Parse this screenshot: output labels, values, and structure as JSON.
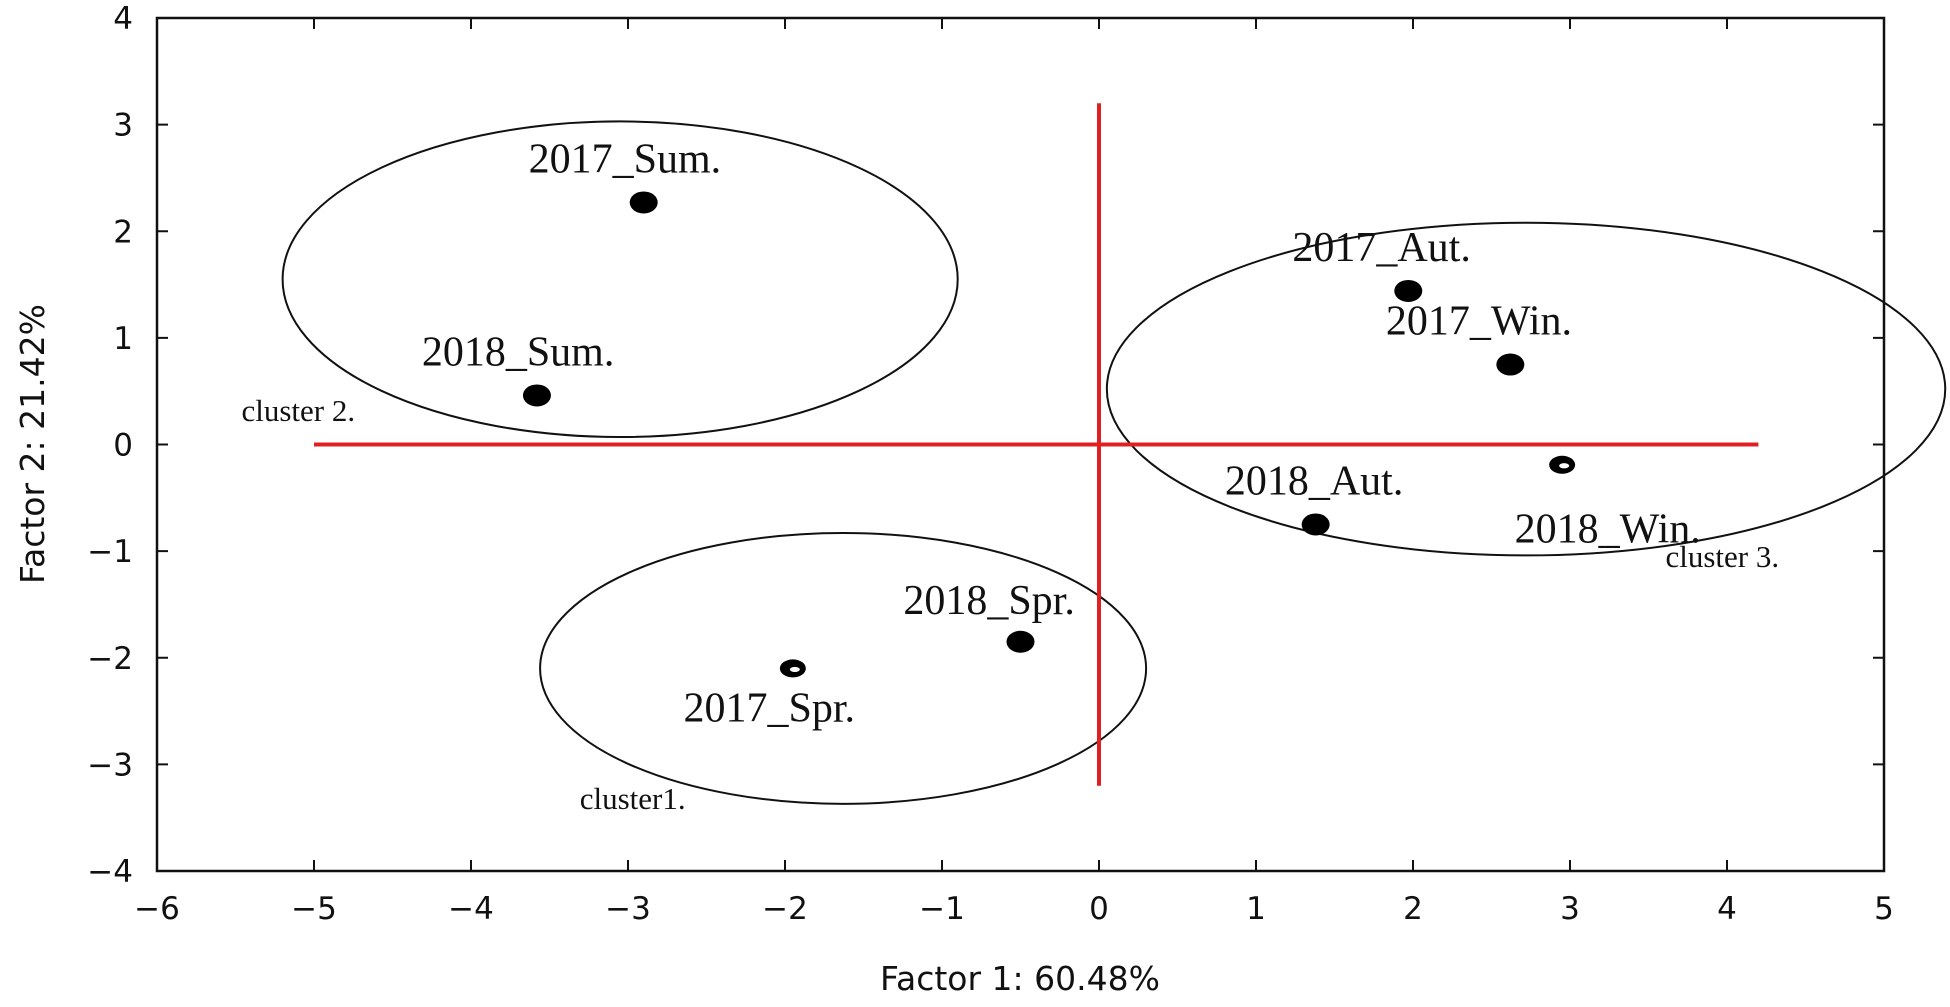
{
  "chart_data": {
    "type": "scatter",
    "xlabel": "Factor 1: 60.48%",
    "ylabel": "Factor 2: 21.42%",
    "xlim": [
      -6,
      5
    ],
    "ylim": [
      -4,
      4
    ],
    "x_ticks": [
      -6,
      -5,
      -4,
      -3,
      -2,
      -1,
      0,
      1,
      2,
      3,
      4,
      5
    ],
    "y_ticks": [
      -4,
      -3,
      -2,
      -1,
      0,
      1,
      2,
      3,
      4
    ],
    "grid": false,
    "points": [
      {
        "label": "2017_Sum.",
        "x": -2.9,
        "y": 2.27,
        "marker": "filled"
      },
      {
        "label": "2018_Sum.",
        "x": -3.58,
        "y": 0.46,
        "marker": "filled"
      },
      {
        "label": "2017_Aut.",
        "x": 1.97,
        "y": 1.44,
        "marker": "filled"
      },
      {
        "label": "2017_Win.",
        "x": 2.62,
        "y": 0.75,
        "marker": "filled"
      },
      {
        "label": "2018_Win.",
        "x": 2.95,
        "y": -0.19,
        "marker": "open"
      },
      {
        "label": "2018_Aut.",
        "x": 1.38,
        "y": -0.75,
        "marker": "filled"
      },
      {
        "label": "2018_Spr.",
        "x": -0.5,
        "y": -1.85,
        "marker": "filled"
      },
      {
        "label": "2017_Spr.",
        "x": -1.95,
        "y": -2.1,
        "marker": "open"
      }
    ],
    "reference_lines": [
      {
        "orientation": "horizontal",
        "value": 0,
        "from": -5,
        "to": 4.2,
        "color": "#e02020"
      },
      {
        "orientation": "vertical",
        "value": 0,
        "from": -3.2,
        "to": 3.2,
        "color": "#e02020"
      }
    ],
    "clusters": [
      {
        "label": "cluster 2.",
        "cx": -3.05,
        "cy": 1.55,
        "rx": 2.15,
        "ry": 1.48
      },
      {
        "label": "cluster 3.",
        "cx": 2.72,
        "cy": 0.52,
        "rx": 2.67,
        "ry": 1.56
      },
      {
        "label": "cluster1.",
        "cx": -1.63,
        "cy": -2.1,
        "rx": 1.93,
        "ry": 1.27
      }
    ]
  }
}
